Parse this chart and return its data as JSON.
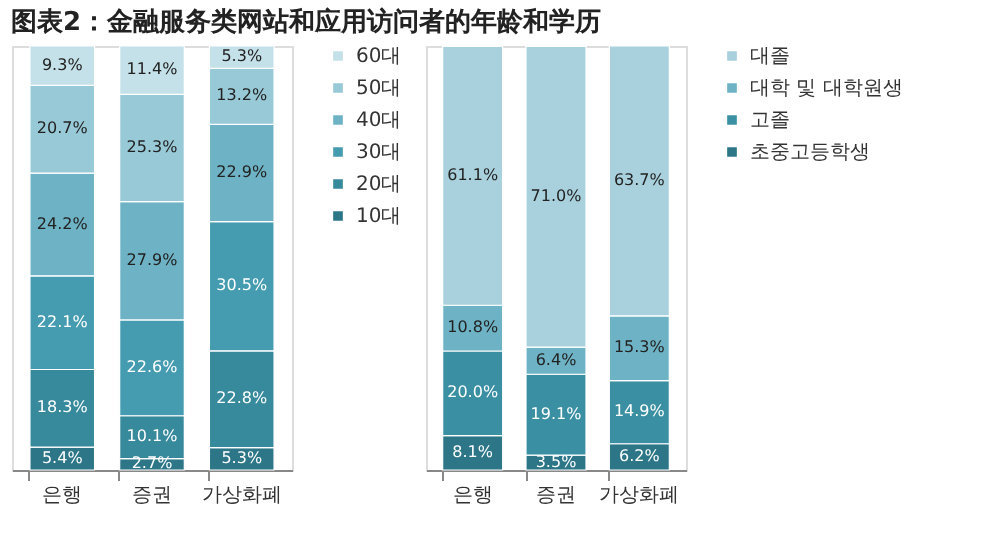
{
  "chart_data": [
    {
      "type": "bar",
      "title": "图表2：金融服务类网站和应用访问者的年龄和学历",
      "stacked": true,
      "legend": "top right",
      "data_labels": true,
      "categories": [
        "은행",
        "증권",
        "가상화폐"
      ],
      "series": [
        {
          "name": "10대",
          "color": "#2c7688",
          "values": [
            5.4,
            2.7,
            5.3
          ],
          "value_labels": [
            "5.4%",
            "2.7%",
            "5.3%"
          ]
        },
        {
          "name": "20대",
          "color": "#37899c",
          "values": [
            18.3,
            10.1,
            22.8
          ],
          "value_labels": [
            "18.3%",
            "10.1%",
            "22.8%"
          ]
        },
        {
          "name": "30대",
          "color": "#459cb0",
          "values": [
            22.1,
            22.6,
            30.5
          ],
          "value_labels": [
            "22.1%",
            "22.6%",
            "30.5%"
          ]
        },
        {
          "name": "40대",
          "color": "#6eb3c5",
          "values": [
            24.2,
            27.9,
            22.9
          ],
          "value_labels": [
            "24.2%",
            "27.9%",
            "22.9%"
          ]
        },
        {
          "name": "50대",
          "color": "#98c9d7",
          "values": [
            20.7,
            25.3,
            13.2
          ],
          "value_labels": [
            "20.7%",
            "25.3%",
            "13.2%"
          ]
        },
        {
          "name": "60대",
          "color": "#c4e0e8",
          "values": [
            9.3,
            11.4,
            5.3
          ],
          "value_labels": [
            "9.3%",
            "11.4%",
            "5.3%"
          ]
        }
      ]
    },
    {
      "type": "bar",
      "stacked": true,
      "legend": "top right",
      "data_labels": true,
      "categories": [
        "은행",
        "증권",
        "가상화폐"
      ],
      "series": [
        {
          "name": "초중고등학생",
          "color": "#2c7688",
          "values": [
            8.1,
            3.5,
            6.2
          ],
          "value_labels": [
            "8.1%",
            "3.5%",
            "6.2%"
          ]
        },
        {
          "name": "고졸",
          "color": "#3a8fa3",
          "values": [
            20.0,
            19.1,
            14.9
          ],
          "value_labels": [
            "20.0%",
            "19.1%",
            "14.9%"
          ]
        },
        {
          "name": "대학 및 대학원생",
          "color": "#6eb3c5",
          "values": [
            10.8,
            6.4,
            15.3
          ],
          "value_labels": [
            "10.8%",
            "6.4%",
            "15.3%"
          ]
        },
        {
          "name": "대졸",
          "color": "#a9d1dd",
          "values": [
            61.1,
            71.0,
            63.7
          ],
          "value_labels": [
            "61.1%",
            "71.0%",
            "63.7%"
          ]
        }
      ]
    }
  ]
}
